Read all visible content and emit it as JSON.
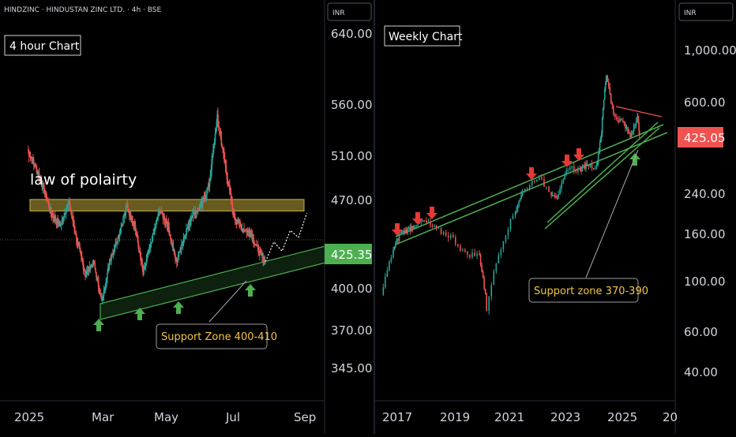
{
  "header": {
    "symbol_line": "HINDZINC · HINDUSTAN ZINC LTD. · 4h · BSE"
  },
  "colors": {
    "background": "#000000",
    "axis_text": "#d1d4dc",
    "up_candle": "#26a69a",
    "down_candle": "#ef5350",
    "channel": "#4caf50",
    "resistance_band": "#8a7a2a",
    "arrow_up": "#4caf50",
    "arrow_down": "#e53935",
    "price_tag_green": "#4caf50",
    "price_tag_red": "#ef5350",
    "annotation_text": "#f5c542"
  },
  "chart_data": [
    {
      "type": "candlestick",
      "title": "4 hour Chart",
      "currency_label": "INR",
      "x_ticks": [
        "2025",
        "Mar",
        "May",
        "Jul",
        "Sep"
      ],
      "y_ticks": [
        "640.00",
        "560.00",
        "510.00",
        "470.00",
        "400.00",
        "370.00",
        "345.00"
      ],
      "y_range": [
        320,
        660
      ],
      "last_price": "425.35",
      "price_path": [
        [
          "2025-01-01",
          520
        ],
        [
          "2025-01-08",
          505
        ],
        [
          "2025-01-15",
          485
        ],
        [
          "2025-01-22",
          462
        ],
        [
          "2025-01-29",
          455
        ],
        [
          "2025-02-05",
          475
        ],
        [
          "2025-02-12",
          440
        ],
        [
          "2025-02-19",
          412
        ],
        [
          "2025-02-26",
          422
        ],
        [
          "2025-03-05",
          388
        ],
        [
          "2025-03-12",
          425
        ],
        [
          "2025-03-19",
          445
        ],
        [
          "2025-03-26",
          470
        ],
        [
          "2025-04-02",
          455
        ],
        [
          "2025-04-09",
          412
        ],
        [
          "2025-04-16",
          440
        ],
        [
          "2025-04-23",
          468
        ],
        [
          "2025-04-30",
          455
        ],
        [
          "2025-05-07",
          422
        ],
        [
          "2025-05-14",
          445
        ],
        [
          "2025-05-21",
          465
        ],
        [
          "2025-05-28",
          470
        ],
        [
          "2025-06-04",
          490
        ],
        [
          "2025-06-11",
          548
        ],
        [
          "2025-06-18",
          505
        ],
        [
          "2025-06-25",
          462
        ],
        [
          "2025-07-02",
          452
        ],
        [
          "2025-07-09",
          448
        ],
        [
          "2025-07-16",
          432
        ],
        [
          "2025-07-22",
          422
        ]
      ],
      "projection_path": [
        [
          "2025-07-22",
          423
        ],
        [
          "2025-07-29",
          440
        ],
        [
          "2025-08-05",
          432
        ],
        [
          "2025-08-12",
          450
        ],
        [
          "2025-08-19",
          444
        ],
        [
          "2025-08-26",
          465
        ]
      ],
      "annotations": {
        "resistance_label": "law of polairty",
        "resistance_band": [
          467,
          477
        ],
        "support_label": "Support Zone 400-410"
      }
    },
    {
      "type": "candlestick",
      "title": "Weekly Chart",
      "currency_label": "INR",
      "y_scale": "log",
      "x_ticks": [
        "2017",
        "2019",
        "2021",
        "2023",
        "2025",
        "20"
      ],
      "y_ticks": [
        "1,000.00",
        "600.00",
        "240.00",
        "160.00",
        "100.00",
        "60.00",
        "40.00"
      ],
      "y_range": [
        30,
        1500
      ],
      "last_price": "425.05",
      "price_path": [
        [
          "2016-07",
          85
        ],
        [
          "2016-12",
          135
        ],
        [
          "2017-03",
          160
        ],
        [
          "2017-06",
          165
        ],
        [
          "2017-09",
          175
        ],
        [
          "2018-01",
          180
        ],
        [
          "2018-06",
          165
        ],
        [
          "2018-12",
          155
        ],
        [
          "2019-06",
          130
        ],
        [
          "2019-12",
          128
        ],
        [
          "2020-03",
          75
        ],
        [
          "2020-09",
          140
        ],
        [
          "2021-03",
          200
        ],
        [
          "2021-06",
          240
        ],
        [
          "2021-12",
          280
        ],
        [
          "2022-06",
          240
        ],
        [
          "2022-09",
          230
        ],
        [
          "2023-01",
          310
        ],
        [
          "2023-06",
          300
        ],
        [
          "2023-09",
          320
        ],
        [
          "2024-01",
          310
        ],
        [
          "2024-03",
          440
        ],
        [
          "2024-05",
          780
        ],
        [
          "2024-08",
          520
        ],
        [
          "2024-12",
          480
        ],
        [
          "2025-03",
          420
        ],
        [
          "2025-06",
          520
        ],
        [
          "2025-07",
          425
        ]
      ],
      "annotations": {
        "support_label": "Support zone 370-390"
      }
    }
  ]
}
